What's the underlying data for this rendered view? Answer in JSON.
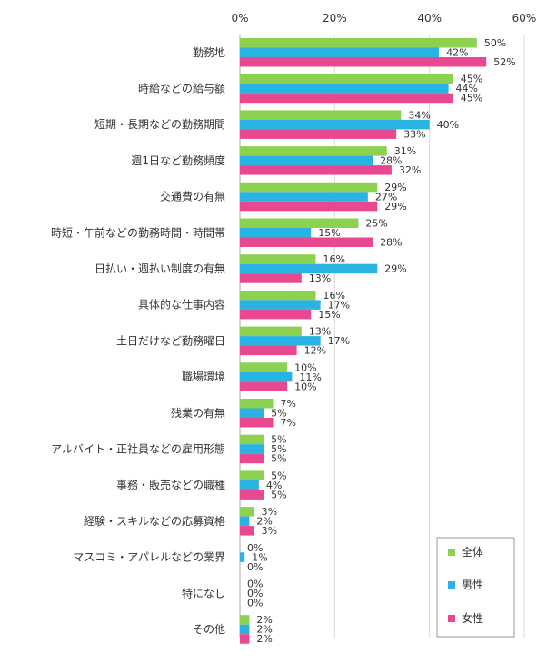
{
  "chart_data": {
    "type": "bar",
    "orientation": "horizontal",
    "xlim": [
      0,
      60
    ],
    "ticks": [
      "0%",
      "20%",
      "40%",
      "60%"
    ],
    "tick_values": [
      0,
      20,
      40,
      60
    ],
    "unit": "%",
    "grid": true,
    "legend_position": "bottom-right",
    "categories": [
      "勤務地",
      "時給などの給与額",
      "短期・長期などの勤務期間",
      "週1日など勤務頻度",
      "交通費の有無",
      "時短・午前などの勤務時間・時間帯",
      "日払い・週払い制度の有無",
      "具体的な仕事内容",
      "土日だけなど勤務曜日",
      "職場環境",
      "残業の有無",
      "アルバイト・正社員などの雇用形態",
      "事務・販売などの職種",
      "経験・スキルなどの応募資格",
      "マスコミ・アパレルなどの業界",
      "特になし",
      "その他"
    ],
    "series": [
      {
        "name": "全体",
        "color": "#8cd14f",
        "values": [
          50,
          45,
          34,
          31,
          29,
          25,
          16,
          16,
          13,
          10,
          7,
          5,
          5,
          3,
          0,
          0,
          2
        ]
      },
      {
        "name": "男性",
        "color": "#2ab2e2",
        "values": [
          42,
          44,
          40,
          28,
          27,
          15,
          29,
          17,
          17,
          11,
          5,
          5,
          4,
          2,
          1,
          0,
          2
        ]
      },
      {
        "name": "女性",
        "color": "#e8488f",
        "values": [
          52,
          45,
          33,
          32,
          29,
          28,
          13,
          15,
          12,
          10,
          7,
          5,
          5,
          3,
          0,
          0,
          2
        ]
      }
    ]
  },
  "colors": {
    "grid": "#d9d9d9",
    "axis": "#aaaaaa",
    "legend_border": "#999999",
    "text": "#333333"
  }
}
